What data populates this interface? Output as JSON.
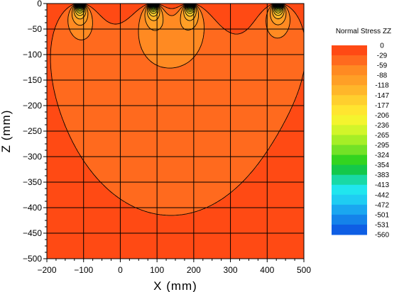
{
  "chart_data": {
    "type": "heatmap",
    "subtype": "filled contour",
    "xlabel": "X (mm)",
    "ylabel": "Z (mm)",
    "xlim": [
      -200,
      500
    ],
    "ylim": [
      -500,
      0
    ],
    "x_ticks": [
      -200,
      -100,
      0,
      100,
      200,
      300,
      400,
      500
    ],
    "y_ticks": [
      0,
      -50,
      -100,
      -150,
      -200,
      -250,
      -300,
      -350,
      -400,
      -450,
      -500
    ],
    "grid": true,
    "legend": {
      "title": "Normal Stress ZZ",
      "placement": "right",
      "levels": [
        0,
        -29,
        -59,
        -88,
        -118,
        -147,
        -177,
        -206,
        -236,
        -265,
        -295,
        -324,
        -354,
        -383,
        -413,
        -442,
        -472,
        -501,
        -531,
        -560
      ],
      "colors": [
        "#ff4a14",
        "#ff6a1e",
        "#ff8a22",
        "#ff9f26",
        "#ffb62a",
        "#ffcf2e",
        "#ffe530",
        "#f4f42e",
        "#d2f52a",
        "#a6ee26",
        "#73e226",
        "#33d41f",
        "#14c84a",
        "#19d9a5",
        "#20e6ee",
        "#1fcdf2",
        "#1aa7f0",
        "#1483ea",
        "#0e5ee4",
        "#0a36dc"
      ]
    },
    "loads": [
      {
        "x_range": [
          -120,
          -100
        ],
        "surface_stress": -560
      },
      {
        "x_range": [
          80,
          100
        ],
        "surface_stress": -560
      },
      {
        "x_range": [
          180,
          200
        ],
        "surface_stress": -560
      },
      {
        "x_range": [
          420,
          440
        ],
        "surface_stress": -560
      }
    ]
  }
}
